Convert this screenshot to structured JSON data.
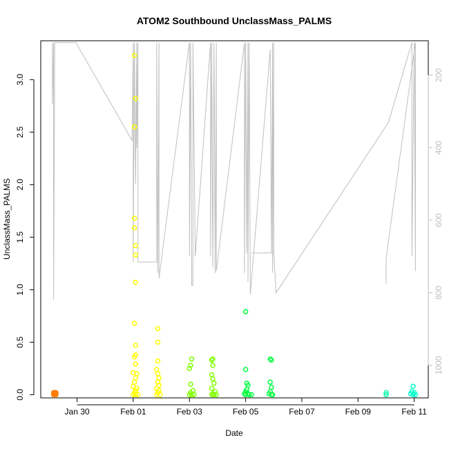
{
  "chart_data": {
    "type": "scatter",
    "title": "ATOM2 Southbound UnclassMass_PALMS",
    "xlabel": "Date",
    "ylabel": "UnclassMass_PALMS",
    "x_ticks": [
      "Jan 30",
      "Feb 01",
      "Feb 03",
      "Feb 05",
      "Feb 07",
      "Feb 09",
      "Feb 11"
    ],
    "y_ticks": [
      "0.0",
      "0.5",
      "1.0",
      "1.5",
      "2.0",
      "2.5",
      "3.0"
    ],
    "y2_ticks": [
      "200",
      "400",
      "600",
      "800",
      "1000"
    ],
    "xlim": [
      "2017-01-28 17:00",
      "2017-02-11 12:00"
    ],
    "ylim": [
      -0.03,
      3.37
    ],
    "y2lim": [
      1090,
      105
    ],
    "y2_reversed": true,
    "grid": false,
    "marker": "open-circle",
    "series": [
      {
        "color": "#ff7f00",
        "points": [
          [
            "2017-01-29 04:00",
            0.0
          ],
          [
            "2017-01-29 04:00",
            0.01
          ],
          [
            "2017-01-29 04:00",
            0.02
          ],
          [
            "2017-01-29 05:00",
            0.0
          ],
          [
            "2017-01-29 05:00",
            0.01
          ],
          [
            "2017-01-29 05:00",
            0.02
          ],
          [
            "2017-01-29 06:00",
            0.0
          ],
          [
            "2017-01-29 06:00",
            0.01
          ],
          [
            "2017-01-29 06:00",
            0.02
          ]
        ]
      },
      {
        "color": "#ffff00",
        "points": [
          [
            "2017-02-01 01:00",
            3.23
          ],
          [
            "2017-02-01 02:00",
            2.82
          ],
          [
            "2017-02-01 01:00",
            2.55
          ],
          [
            "2017-02-01 01:00",
            1.68
          ],
          [
            "2017-02-01 01:00",
            1.59
          ],
          [
            "2017-02-01 02:00",
            1.42
          ],
          [
            "2017-02-01 02:00",
            1.33
          ],
          [
            "2017-02-01 02:00",
            1.07
          ],
          [
            "2017-02-01 01:00",
            0.68
          ],
          [
            "2017-02-01 02:00",
            0.47
          ],
          [
            "2017-02-01 02:00",
            0.38
          ],
          [
            "2017-02-01 01:00",
            0.36
          ],
          [
            "2017-02-01 02:00",
            0.29
          ],
          [
            "2017-02-01 00:00",
            0.21
          ],
          [
            "2017-02-01 03:00",
            0.2
          ],
          [
            "2017-02-01 02:00",
            0.16
          ],
          [
            "2017-02-01 01:00",
            0.12
          ],
          [
            "2017-02-01 00:00",
            0.08
          ],
          [
            "2017-02-01 03:00",
            0.06
          ],
          [
            "2017-02-01 02:00",
            0.04
          ],
          [
            "2017-02-01 01:00",
            0.02
          ],
          [
            "2017-02-01 00:00",
            0.0
          ],
          [
            "2017-02-01 02:00",
            0.0
          ],
          [
            "2017-02-01 04:00",
            0.0
          ],
          [
            "2017-02-01 21:00",
            0.63
          ],
          [
            "2017-02-01 21:00",
            0.5
          ],
          [
            "2017-02-01 21:00",
            0.32
          ],
          [
            "2017-02-01 20:00",
            0.24
          ],
          [
            "2017-02-01 21:00",
            0.2
          ],
          [
            "2017-02-01 22:00",
            0.16
          ],
          [
            "2017-02-01 21:00",
            0.12
          ],
          [
            "2017-02-01 22:00",
            0.09
          ],
          [
            "2017-02-01 20:00",
            0.06
          ],
          [
            "2017-02-01 22:00",
            0.04
          ],
          [
            "2017-02-01 21:00",
            0.02
          ],
          [
            "2017-02-01 20:00",
            0.0
          ],
          [
            "2017-02-01 23:00",
            0.0
          ]
        ]
      },
      {
        "color": "#80ff00",
        "points": [
          [
            "2017-02-03 02:00",
            0.34
          ],
          [
            "2017-02-03 01:00",
            0.28
          ],
          [
            "2017-02-03 00:00",
            0.25
          ],
          [
            "2017-02-03 01:00",
            0.1
          ],
          [
            "2017-02-03 03:00",
            0.04
          ],
          [
            "2017-02-03 01:00",
            0.02
          ],
          [
            "2017-02-03 00:00",
            0.0
          ],
          [
            "2017-02-03 02:00",
            0.0
          ],
          [
            "2017-02-03 04:00",
            0.0
          ],
          [
            "2017-02-03 20:00",
            0.34
          ],
          [
            "2017-02-03 19:00",
            0.33
          ],
          [
            "2017-02-03 20:00",
            0.28
          ],
          [
            "2017-02-03 19:00",
            0.19
          ],
          [
            "2017-02-03 20:00",
            0.15
          ],
          [
            "2017-02-03 21:00",
            0.11
          ],
          [
            "2017-02-03 19:00",
            0.06
          ],
          [
            "2017-02-03 22:00",
            0.03
          ],
          [
            "2017-02-03 20:00",
            0.01
          ],
          [
            "2017-02-03 19:00",
            0.0
          ],
          [
            "2017-02-03 21:00",
            0.0
          ],
          [
            "2017-02-03 23:00",
            0.0
          ]
        ]
      },
      {
        "color": "#00ff40",
        "points": [
          [
            "2017-02-05 00:00",
            0.79
          ],
          [
            "2017-02-05 00:00",
            0.24
          ],
          [
            "2017-02-05 01:00",
            0.11
          ],
          [
            "2017-02-05 02:00",
            0.09
          ],
          [
            "2017-02-05 01:00",
            0.05
          ],
          [
            "2017-02-05 00:00",
            0.03
          ],
          [
            "2017-02-04 23:00",
            0.01
          ],
          [
            "2017-02-05 02:00",
            0.01
          ],
          [
            "2017-02-05 00:00",
            0.0
          ],
          [
            "2017-02-05 03:00",
            0.0
          ],
          [
            "2017-02-05 05:00",
            0.0
          ],
          [
            "2017-02-05 21:00",
            0.34
          ],
          [
            "2017-02-05 22:00",
            0.33
          ],
          [
            "2017-02-05 21:00",
            0.12
          ],
          [
            "2017-02-05 22:00",
            0.07
          ],
          [
            "2017-02-05 21:00",
            0.03
          ],
          [
            "2017-02-05 20:00",
            0.01
          ],
          [
            "2017-02-05 22:00",
            0.0
          ],
          [
            "2017-02-05 23:00",
            0.0
          ]
        ]
      },
      {
        "color": "#00ffaa",
        "points": [
          [
            "2017-02-10 00:00",
            0.02
          ],
          [
            "2017-02-10 00:00",
            0.0
          ]
        ]
      },
      {
        "color": "#00ffcc",
        "points": [
          [
            "2017-02-10 23:00",
            0.08
          ],
          [
            "2017-02-10 22:00",
            0.03
          ],
          [
            "2017-02-11 00:00",
            0.02
          ],
          [
            "2017-02-10 21:00",
            0.01
          ],
          [
            "2017-02-10 23:00",
            0.0
          ],
          [
            "2017-02-11 01:00",
            0.0
          ]
        ]
      }
    ],
    "overlay_line": {
      "color": "#bebebe",
      "axis": "right",
      "points": [
        [
          "2017-01-29 03:00",
          110
        ],
        [
          "2017-01-29 03:00",
          280
        ],
        [
          "2017-01-29 04:00",
          110
        ],
        [
          "2017-01-29 04:00",
          820
        ],
        [
          "2017-01-29 05:00",
          110
        ],
        [
          "2017-01-29 06:00",
          110
        ],
        [
          "2017-01-29 23:00",
          110
        ],
        [
          "2017-01-31 23:00",
          380
        ],
        [
          "2017-02-01 00:00",
          110
        ],
        [
          "2017-02-01 00:00",
          715
        ],
        [
          "2017-02-01 01:00",
          110
        ],
        [
          "2017-02-01 02:00",
          500
        ],
        [
          "2017-02-01 03:00",
          110
        ],
        [
          "2017-02-01 03:00",
          400
        ],
        [
          "2017-02-01 04:00",
          110
        ],
        [
          "2017-02-01 04:00",
          715
        ],
        [
          "2017-02-01 20:00",
          715
        ],
        [
          "2017-02-01 20:00",
          110
        ],
        [
          "2017-02-01 21:00",
          745
        ],
        [
          "2017-02-01 22:00",
          110
        ],
        [
          "2017-02-01 22:00",
          760
        ],
        [
          "2017-02-03 00:00",
          110
        ],
        [
          "2017-02-03 00:00",
          700
        ],
        [
          "2017-02-03 01:00",
          110
        ],
        [
          "2017-02-03 02:00",
          780
        ],
        [
          "2017-02-03 03:00",
          780
        ],
        [
          "2017-02-03 03:00",
          110
        ],
        [
          "2017-02-03 05:00",
          700
        ],
        [
          "2017-02-03 18:00",
          110
        ],
        [
          "2017-02-03 18:00",
          700
        ],
        [
          "2017-02-03 19:00",
          110
        ],
        [
          "2017-02-03 20:00",
          730
        ],
        [
          "2017-02-03 21:00",
          110
        ],
        [
          "2017-02-03 22:00",
          745
        ],
        [
          "2017-02-03 23:00",
          110
        ],
        [
          "2017-02-03 23:00",
          740
        ],
        [
          "2017-02-04 23:00",
          110
        ],
        [
          "2017-02-04 23:00",
          745
        ],
        [
          "2017-02-05 00:00",
          110
        ],
        [
          "2017-02-05 01:00",
          690
        ],
        [
          "2017-02-05 02:00",
          110
        ],
        [
          "2017-02-05 02:00",
          770
        ],
        [
          "2017-02-05 03:00",
          110
        ],
        [
          "2017-02-05 04:00",
          805
        ],
        [
          "2017-02-05 21:00",
          130
        ],
        [
          "2017-02-05 22:00",
          690
        ],
        [
          "2017-02-05 23:00",
          110
        ],
        [
          "2017-02-05 23:00",
          745
        ],
        [
          "2017-02-06 00:00",
          110
        ],
        [
          "2017-02-06 00:00",
          690
        ],
        [
          "2017-02-05 05:00",
          690
        ],
        [
          "2017-02-06 00:00",
          690
        ],
        [
          "2017-02-06 02:00",
          800
        ],
        [
          "2017-02-10 02:00",
          330
        ],
        [
          "2017-02-10 22:00",
          110
        ],
        [
          "2017-02-10 22:00",
          700
        ],
        [
          "2017-02-11 00:00",
          110
        ],
        [
          "2017-02-11 01:00",
          740
        ],
        [
          "2017-02-11 01:00",
          110
        ],
        [
          "2017-02-10 00:00",
          705
        ],
        [
          "2017-02-10 00:00",
          775
        ]
      ]
    }
  }
}
